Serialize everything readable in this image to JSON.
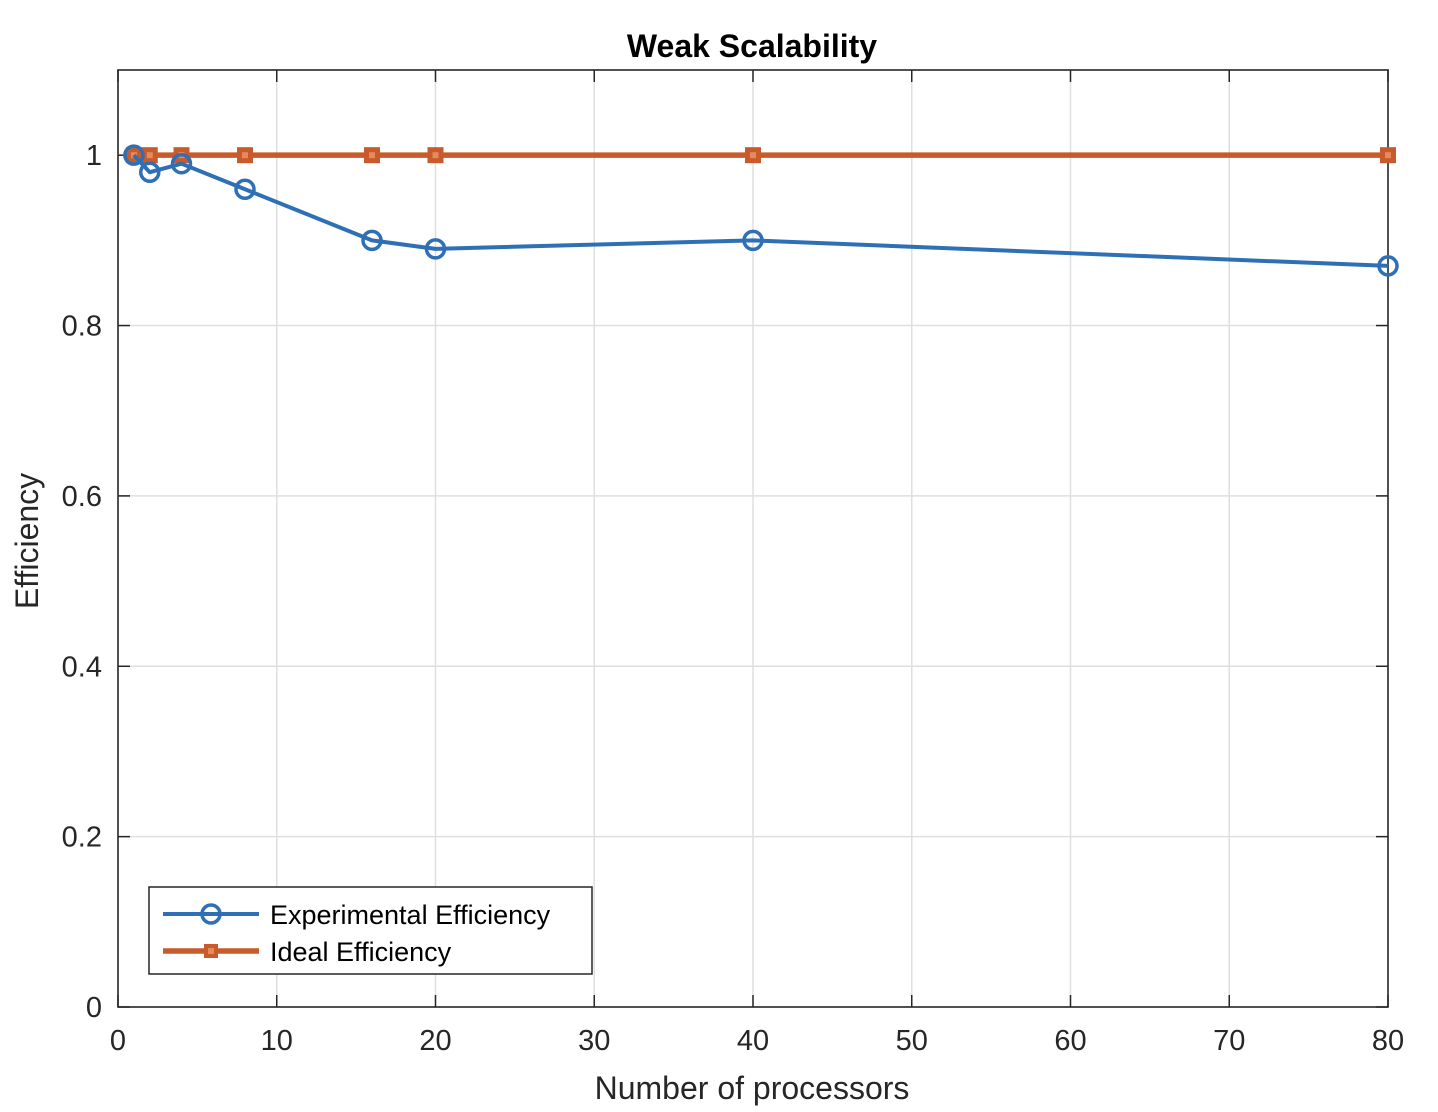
{
  "chart_data": {
    "type": "line",
    "title": "Weak Scalability",
    "xlabel": "Number of processors",
    "ylabel": "Efficiency",
    "xlim": [
      0,
      80
    ],
    "ylim": [
      0,
      1.1
    ],
    "xticks": [
      0,
      10,
      20,
      30,
      40,
      50,
      60,
      70,
      80
    ],
    "yticks": [
      0,
      0.2,
      0.4,
      0.6,
      0.8,
      1
    ],
    "xtick_labels": [
      "0",
      "10",
      "20",
      "30",
      "40",
      "50",
      "60",
      "70",
      "80"
    ],
    "ytick_labels": [
      "0",
      "0.2",
      "0.4",
      "0.6",
      "0.8",
      "1"
    ],
    "grid": true,
    "legend_position": "bottom-left",
    "series": [
      {
        "name": "Experimental Efficiency",
        "color": "#2e6fb5",
        "marker": "circle",
        "x": [
          1,
          2,
          4,
          8,
          16,
          20,
          40,
          80
        ],
        "y": [
          1.0,
          0.98,
          0.99,
          0.96,
          0.9,
          0.89,
          0.9,
          0.87
        ]
      },
      {
        "name": "Ideal Efficiency",
        "color": "#c95a2b",
        "marker": "square",
        "x": [
          1,
          2,
          4,
          8,
          16,
          20,
          40,
          80
        ],
        "y": [
          1,
          1,
          1,
          1,
          1,
          1,
          1,
          1
        ]
      }
    ]
  }
}
